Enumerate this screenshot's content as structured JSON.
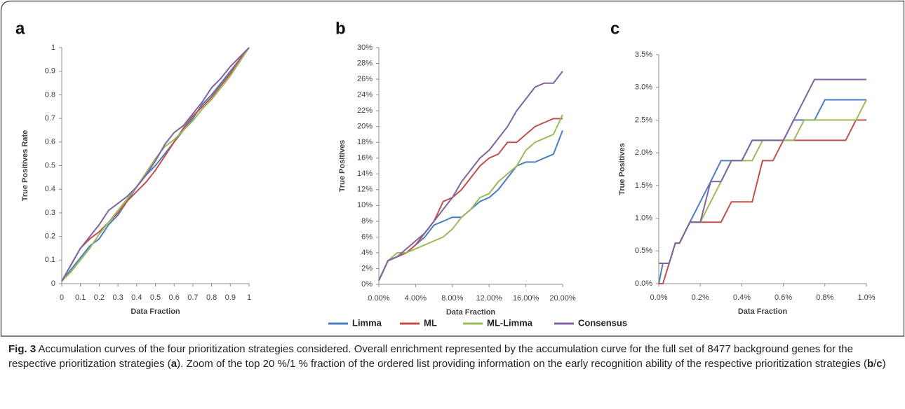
{
  "chart_data": [
    {
      "type": "line",
      "label": "a",
      "ylabel": "True Positives Rate",
      "xlabel": "Data Fraction",
      "x": [
        0,
        0.05,
        0.1,
        0.15,
        0.2,
        0.25,
        0.3,
        0.35,
        0.4,
        0.45,
        0.5,
        0.55,
        0.6,
        0.65,
        0.7,
        0.75,
        0.8,
        0.85,
        0.9,
        0.95,
        1
      ],
      "xlim": [
        0,
        1
      ],
      "xticks": [
        0,
        0.1,
        0.2,
        0.3,
        0.4,
        0.5,
        0.6,
        0.7,
        0.8,
        0.9,
        1
      ],
      "ylim": [
        0,
        1
      ],
      "yticks": [
        0,
        0.1,
        0.2,
        0.3,
        0.4,
        0.5,
        0.6,
        0.7,
        0.8,
        0.9,
        1
      ],
      "series": [
        {
          "name": "Limma",
          "color": "#4a7fc1",
          "values": [
            0.01,
            0.06,
            0.11,
            0.16,
            0.19,
            0.25,
            0.29,
            0.35,
            0.41,
            0.46,
            0.5,
            0.55,
            0.6,
            0.65,
            0.7,
            0.76,
            0.8,
            0.85,
            0.9,
            0.95,
            1
          ]
        },
        {
          "name": "ML",
          "color": "#c0504d",
          "values": [
            0.01,
            0.08,
            0.15,
            0.19,
            0.22,
            0.26,
            0.3,
            0.35,
            0.39,
            0.43,
            0.48,
            0.54,
            0.6,
            0.66,
            0.71,
            0.75,
            0.79,
            0.84,
            0.89,
            0.95,
            1
          ]
        },
        {
          "name": "ML-Limma",
          "color": "#9bbb59",
          "values": [
            0.01,
            0.05,
            0.1,
            0.15,
            0.21,
            0.26,
            0.31,
            0.36,
            0.41,
            0.47,
            0.53,
            0.58,
            0.61,
            0.65,
            0.69,
            0.74,
            0.78,
            0.83,
            0.88,
            0.94,
            1
          ]
        },
        {
          "name": "Consensus",
          "color": "#8064a2",
          "values": [
            0.01,
            0.08,
            0.15,
            0.2,
            0.25,
            0.31,
            0.34,
            0.37,
            0.41,
            0.46,
            0.52,
            0.59,
            0.64,
            0.67,
            0.72,
            0.77,
            0.83,
            0.87,
            0.92,
            0.96,
            1
          ]
        }
      ]
    },
    {
      "type": "line",
      "label": "b",
      "ylabel": "True Positives",
      "xlabel": "Data Fraction",
      "x": [
        0,
        1,
        2,
        3,
        4,
        5,
        6,
        7,
        8,
        9,
        10,
        11,
        12,
        13,
        14,
        15,
        16,
        17,
        18,
        19,
        20
      ],
      "xlim": [
        0,
        20
      ],
      "xticks": [
        {
          "value": 0,
          "label": "0.00%"
        },
        {
          "value": 4,
          "label": "4.00%"
        },
        {
          "value": 8,
          "label": "8.00%"
        },
        {
          "value": 12,
          "label": "12.00%"
        },
        {
          "value": 16,
          "label": "16.00%"
        },
        {
          "value": 20,
          "label": "20.00%"
        }
      ],
      "ylim": [
        0,
        30
      ],
      "yticks": [
        {
          "value": 0,
          "label": "0%"
        },
        {
          "value": 2,
          "label": "2%"
        },
        {
          "value": 4,
          "label": "4%"
        },
        {
          "value": 6,
          "label": "6%"
        },
        {
          "value": 8,
          "label": "8%"
        },
        {
          "value": 10,
          "label": "10%"
        },
        {
          "value": 12,
          "label": "12%"
        },
        {
          "value": 14,
          "label": "14%"
        },
        {
          "value": 16,
          "label": "16%"
        },
        {
          "value": 18,
          "label": "18%"
        },
        {
          "value": 20,
          "label": "20%"
        },
        {
          "value": 22,
          "label": "22%"
        },
        {
          "value": 24,
          "label": "24%"
        },
        {
          "value": 26,
          "label": "26%"
        },
        {
          "value": 28,
          "label": "28%"
        },
        {
          "value": 30,
          "label": "30%"
        }
      ],
      "series": [
        {
          "color": "#4a7fc1",
          "values": [
            0.5,
            3,
            3.5,
            4,
            5,
            6,
            7.5,
            8,
            8.5,
            8.5,
            9.5,
            10.5,
            11,
            12,
            13.5,
            15,
            15.5,
            15.5,
            16,
            16.5,
            19.5
          ]
        },
        {
          "color": "#c0504d",
          "values": [
            0.5,
            3,
            3.5,
            4,
            5,
            6.5,
            8,
            10.5,
            11,
            12,
            13.5,
            15,
            16,
            16.5,
            18,
            18,
            19,
            20,
            20.5,
            21,
            21
          ]
        },
        {
          "color": "#9bbb59",
          "values": [
            0.5,
            3,
            4,
            4,
            4.5,
            5,
            5.5,
            6,
            7,
            8.5,
            9.5,
            11,
            11.5,
            13,
            14,
            15,
            17,
            18,
            18.5,
            19,
            21.5
          ]
        },
        {
          "color": "#8064a2",
          "values": [
            0.5,
            3,
            3.5,
            4.5,
            5.5,
            6.5,
            8,
            9.5,
            11,
            13,
            14.5,
            16,
            17,
            18.5,
            20,
            22,
            23.5,
            25,
            25.5,
            25.5,
            27
          ]
        }
      ]
    },
    {
      "type": "line",
      "label": "c",
      "ylabel": "True Positives",
      "xlabel": "Data Fraction",
      "x": [
        0,
        0.02,
        0.05,
        0.08,
        0.1,
        0.15,
        0.2,
        0.25,
        0.3,
        0.35,
        0.4,
        0.45,
        0.5,
        0.55,
        0.6,
        0.65,
        0.7,
        0.75,
        0.8,
        0.85,
        0.9,
        0.95,
        1
      ],
      "xlim": [
        0,
        1
      ],
      "xticks": [
        {
          "value": 0,
          "label": "0.0%"
        },
        {
          "value": 0.2,
          "label": "0.2%"
        },
        {
          "value": 0.4,
          "label": "0.4%"
        },
        {
          "value": 0.6,
          "label": "0.6%"
        },
        {
          "value": 0.8,
          "label": "0.8%"
        },
        {
          "value": 1,
          "label": "1.0%"
        }
      ],
      "ylim": [
        0,
        3.5
      ],
      "yticks": [
        {
          "value": 0,
          "label": "0.0%"
        },
        {
          "value": 0.5,
          "label": "0.5%"
        },
        {
          "value": 1,
          "label": "1.0%"
        },
        {
          "value": 1.5,
          "label": "1.5%"
        },
        {
          "value": 2,
          "label": "2.0%"
        },
        {
          "value": 2.5,
          "label": "2.5%"
        },
        {
          "value": 3,
          "label": "3.0%"
        },
        {
          "value": 3.5,
          "label": "3.5%"
        }
      ],
      "series": [
        {
          "color": "#4a7fc1",
          "values": [
            0,
            0.31,
            0.31,
            0.62,
            0.62,
            0.94,
            1.25,
            1.56,
            1.88,
            1.88,
            1.88,
            2.19,
            2.19,
            2.19,
            2.19,
            2.5,
            2.5,
            2.5,
            2.81,
            2.81,
            2.81,
            2.81,
            2.81
          ]
        },
        {
          "color": "#c0504d",
          "values": [
            0,
            0,
            0.31,
            0.62,
            0.62,
            0.94,
            0.94,
            0.94,
            0.94,
            1.25,
            1.25,
            1.25,
            1.88,
            1.88,
            2.19,
            2.19,
            2.19,
            2.19,
            2.19,
            2.19,
            2.19,
            2.5,
            2.5
          ]
        },
        {
          "color": "#9bbb59",
          "values": [
            0.31,
            0.31,
            0.31,
            0.62,
            0.62,
            0.94,
            0.94,
            1.25,
            1.56,
            1.88,
            1.88,
            1.88,
            2.19,
            2.19,
            2.19,
            2.19,
            2.5,
            2.5,
            2.5,
            2.5,
            2.5,
            2.5,
            2.81
          ]
        },
        {
          "color": "#8064a2",
          "values": [
            0.31,
            0.31,
            0.31,
            0.62,
            0.62,
            0.94,
            0.94,
            1.56,
            1.56,
            1.88,
            1.88,
            2.19,
            2.19,
            2.19,
            2.19,
            2.5,
            2.81,
            3.12,
            3.12,
            3.12,
            3.12,
            3.12,
            3.12
          ]
        }
      ]
    }
  ],
  "caption": [
    {
      "text": "Fig. 3",
      "bold": true
    },
    {
      "text": " Accumulation curves of the four prioritization strategies considered. Overall enrichment represented by the accumulation curve for the full set of 8477 background genes for the respective prioritization strategies (",
      "bold": false
    },
    {
      "text": "a",
      "bold": true
    },
    {
      "text": "). Zoom of the top 20 %/1 % fraction of the ordered list providing information on the early recognition ability of the respective prioritization strategies (",
      "bold": false
    },
    {
      "text": "b",
      "bold": true
    },
    {
      "text": "/",
      "bold": false
    },
    {
      "text": "c",
      "bold": true
    },
    {
      "text": ")",
      "bold": false
    }
  ]
}
